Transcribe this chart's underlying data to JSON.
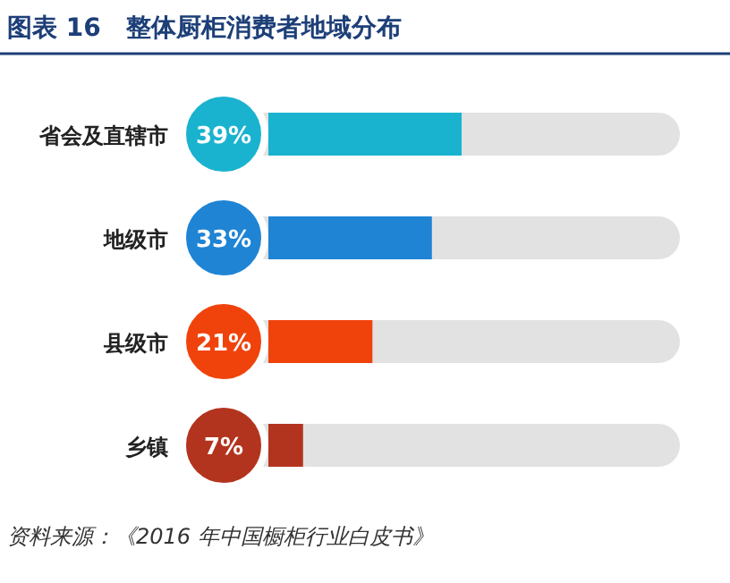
{
  "chart_data": {
    "type": "bar",
    "orientation": "horizontal",
    "title": "图表 16　整体厨柜消费者地域分布",
    "categories": [
      "省会及直辖市",
      "地级市",
      "县级市",
      "乡镇"
    ],
    "values": [
      39,
      33,
      21,
      7
    ],
    "colors": [
      "#1ab3cf",
      "#1f84d4",
      "#f0430c",
      "#b3341e"
    ],
    "value_labels": [
      "39%",
      "33%",
      "21%",
      "7%"
    ],
    "annotations": [
      "资料来源：《2016 年中国橱柜行业白皮书》"
    ]
  }
}
